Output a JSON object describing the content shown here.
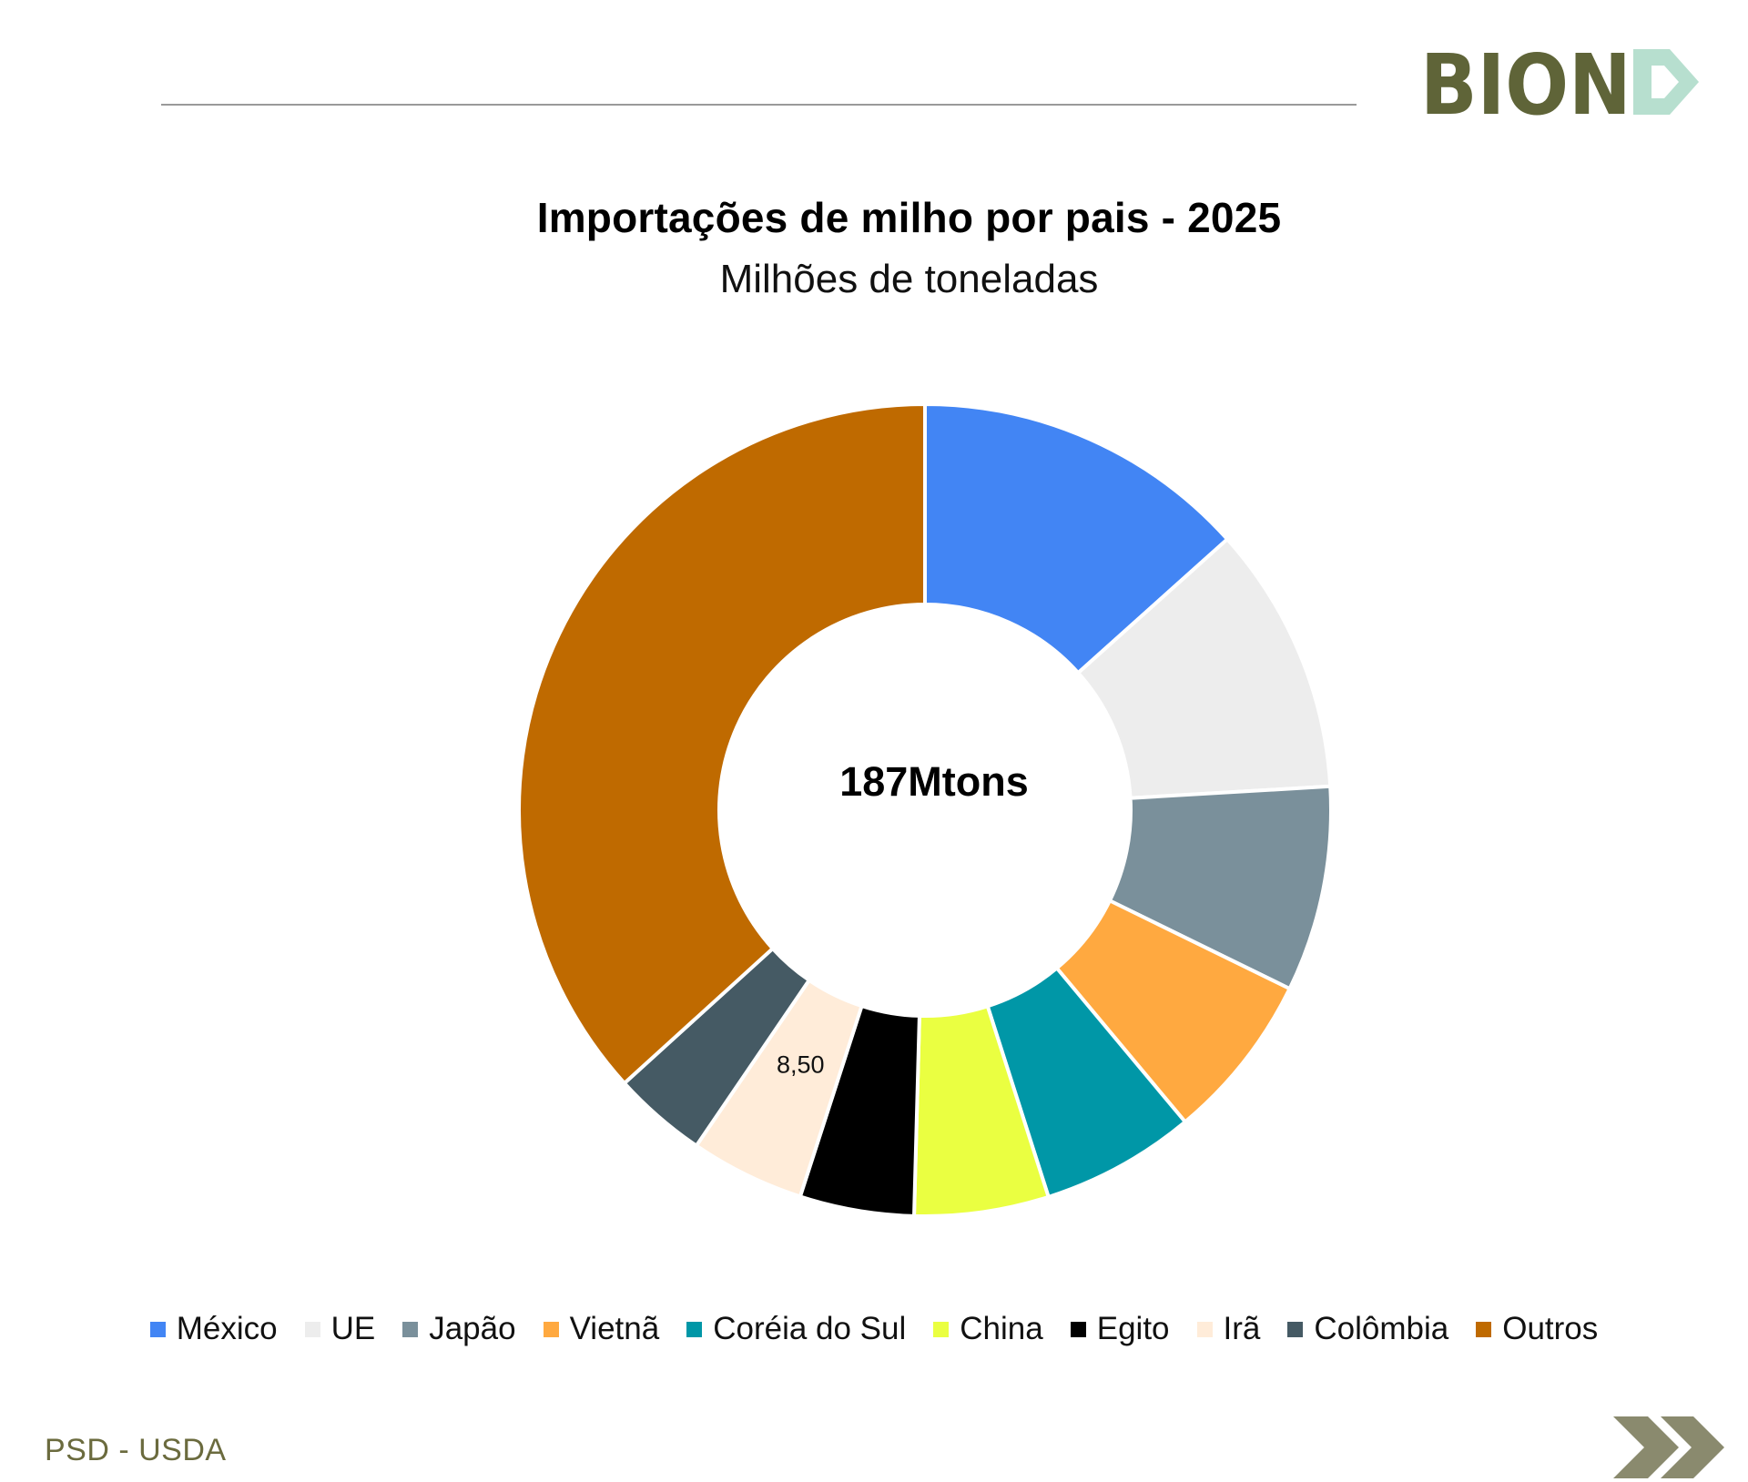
{
  "logo": {
    "text": "BIOND",
    "colors": {
      "main": "#5f6438",
      "accent": "#b7dfcf"
    }
  },
  "title": "Importações de milho por pais - 2025",
  "subtitle": "Milhões de toneladas",
  "center_label": "187Mtons",
  "source": "PSD - USDA",
  "icons": {
    "next": "double-chevron-right-icon"
  },
  "chart_data": {
    "type": "pie",
    "variant": "donut",
    "title": "Importações de milho por pais - 2025",
    "subtitle": "Milhões de toneladas",
    "total_label": "187Mtons",
    "legend_position": "bottom",
    "slices": [
      {
        "label": "México",
        "value": 25.0,
        "color": "#4285f4"
      },
      {
        "label": "UE",
        "value": 20.0,
        "color": "#ededed"
      },
      {
        "label": "Japão",
        "value": 15.3,
        "color": "#7a909b"
      },
      {
        "label": "Vietnã",
        "value": 12.5,
        "color": "#ffa940"
      },
      {
        "label": "Coréia do Sul",
        "value": 11.5,
        "color": "#0097a7"
      },
      {
        "label": "China",
        "value": 10.0,
        "color": "#eaff41"
      },
      {
        "label": "Egito",
        "value": 8.5,
        "color": "#000000"
      },
      {
        "label": "Irã",
        "value": 8.5,
        "color": "#ffecd9",
        "data_label": "8,50"
      },
      {
        "label": "Colômbia",
        "value": 7.0,
        "color": "#455a64"
      },
      {
        "label": "Outros",
        "value": 68.7,
        "color": "#bf6a00"
      }
    ]
  }
}
